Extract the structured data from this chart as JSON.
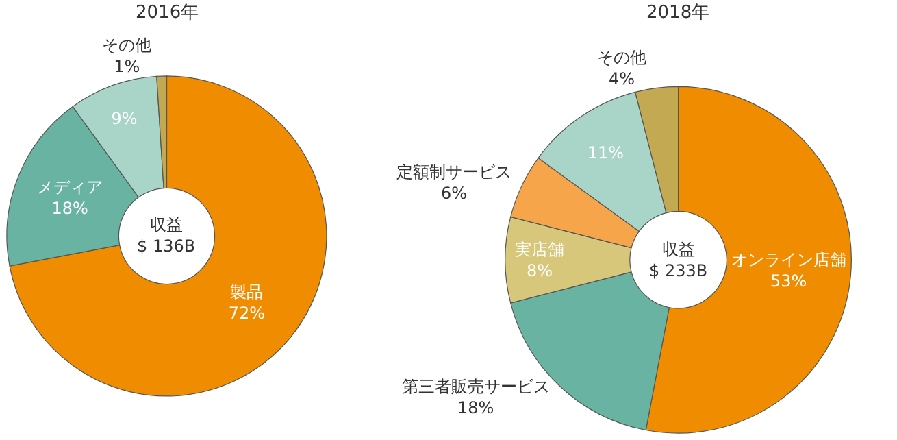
{
  "chart_data": [
    {
      "type": "donut",
      "title": "2016年",
      "categories": [
        "製品",
        "メディア",
        null,
        "その他"
      ],
      "values": [
        72,
        18,
        9,
        1
      ],
      "value_labels": [
        "72%",
        "18%",
        "9%",
        "1%"
      ],
      "colors": [
        "#f08c00",
        "#68b3a2",
        "#a8d5c8",
        "#c3aa52"
      ],
      "annotations": [
        "収益\n$ 136B"
      ],
      "legend": false
    },
    {
      "type": "donut",
      "title": "2018年",
      "categories": [
        "オンライン店舗",
        "第三者販売サービス",
        "実店舗",
        "定額制サービス",
        null,
        "その他"
      ],
      "values": [
        53,
        18,
        8,
        6,
        11,
        4
      ],
      "value_labels": [
        "53%",
        "18%",
        "8%",
        "6%",
        "11%",
        "4%"
      ],
      "colors": [
        "#f08c00",
        "#68b3a2",
        "#d7c77a",
        "#f7a54a",
        "#a8d5c8",
        "#c3aa52"
      ],
      "annotations": [
        "収益\n$ 233B"
      ],
      "legend": false
    }
  ]
}
